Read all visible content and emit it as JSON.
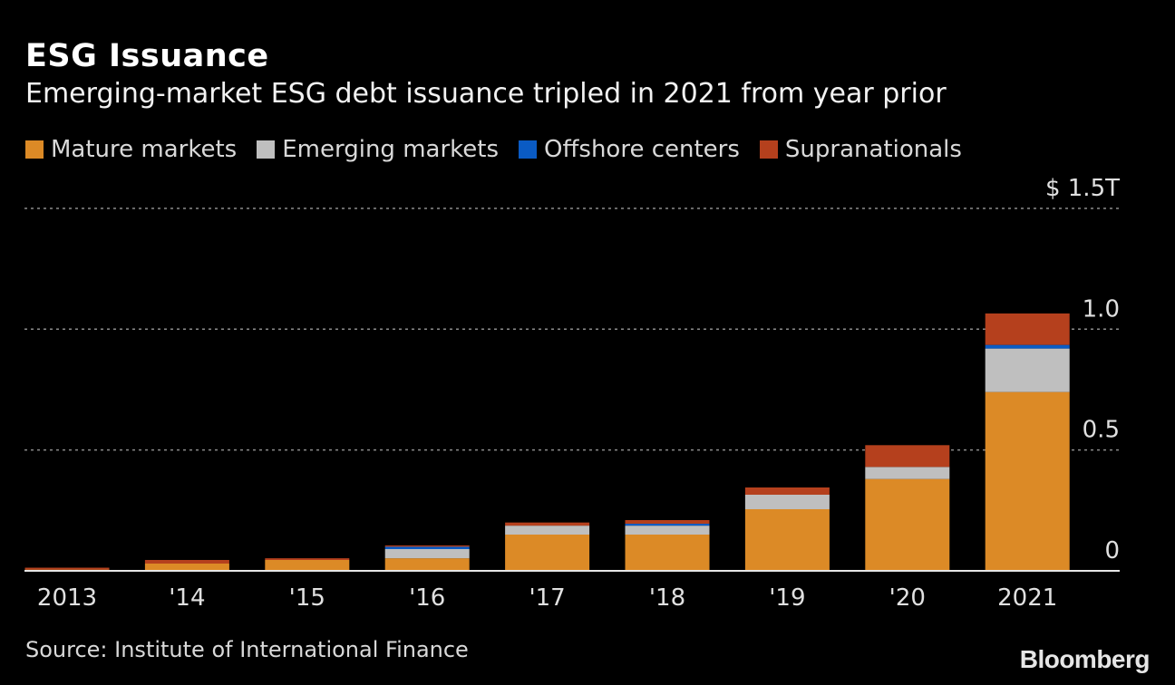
{
  "title": "ESG Issuance",
  "subtitle": "Emerging-market ESG debt issuance tripled in 2021 from year prior",
  "source": "Source: Institute of International Finance",
  "logo": "Bloomberg",
  "chart_data": {
    "type": "bar",
    "stacked": true,
    "categories": [
      "2013",
      "'14",
      "'15",
      "'16",
      "'17",
      "'18",
      "'19",
      "'20",
      "2021"
    ],
    "series": [
      {
        "name": "Mature markets",
        "color": "#dc8a26",
        "values": [
          0.005,
          0.03,
          0.045,
          0.052,
          0.15,
          0.15,
          0.255,
          0.38,
          0.74
        ]
      },
      {
        "name": "Emerging markets",
        "color": "#bfbfbf",
        "values": [
          0,
          0,
          0,
          0.038,
          0.037,
          0.037,
          0.06,
          0.05,
          0.18
        ]
      },
      {
        "name": "Offshore centers",
        "color": "#0a5bc4",
        "values": [
          0,
          0,
          0,
          0.01,
          0,
          0.008,
          0,
          0,
          0.015
        ]
      },
      {
        "name": "Supranationals",
        "color": "#b5401d",
        "values": [
          0.008,
          0.015,
          0.007,
          0.005,
          0.013,
          0.015,
          0.03,
          0.09,
          0.13
        ]
      }
    ],
    "yticks": [
      {
        "value": 0,
        "label": "0"
      },
      {
        "value": 0.5,
        "label": "0.5"
      },
      {
        "value": 1.0,
        "label": "1.0"
      },
      {
        "value": 1.5,
        "label": "$ 1.5T"
      }
    ],
    "ylim": [
      0,
      1.5
    ],
    "grid": true,
    "legend_position": "top-left"
  }
}
